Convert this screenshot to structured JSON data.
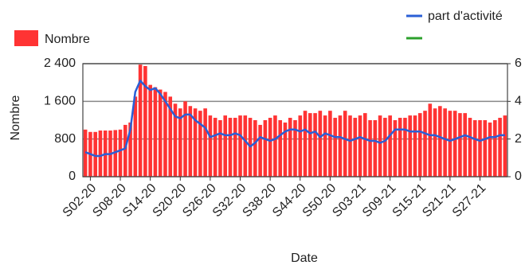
{
  "chart_data": {
    "type": "bar_line",
    "y_label": "Nombre",
    "x_label": "Date",
    "categories": [
      null,
      "S02-20",
      null,
      null,
      null,
      null,
      null,
      "S08-20",
      null,
      null,
      null,
      null,
      null,
      "S14-20",
      null,
      null,
      null,
      null,
      null,
      "S20-20",
      null,
      null,
      null,
      null,
      null,
      "S26-20",
      null,
      null,
      null,
      null,
      null,
      "S32-20",
      null,
      null,
      null,
      null,
      null,
      "S38-20",
      null,
      null,
      null,
      null,
      null,
      "S44-20",
      null,
      null,
      null,
      null,
      null,
      "S50-20",
      null,
      null,
      null,
      null,
      null,
      "S03-21",
      null,
      null,
      null,
      null,
      null,
      "S09-21",
      null,
      null,
      null,
      null,
      null,
      "S15-21",
      null,
      null,
      null,
      null,
      null,
      "S21-21",
      null,
      null,
      null,
      null,
      null,
      "S27-21",
      null,
      null,
      null,
      null,
      null
    ],
    "series": [
      {
        "name": "Nombre",
        "color": "#ff3333",
        "kind": "bar",
        "axis": "y",
        "values": [
          1000,
          950,
          950,
          980,
          980,
          980,
          990,
          1000,
          1100,
          1150,
          1700,
          2380,
          2350,
          1950,
          1900,
          1850,
          1800,
          1700,
          1550,
          1450,
          1600,
          1500,
          1450,
          1400,
          1450,
          1300,
          1250,
          1200,
          1300,
          1250,
          1250,
          1300,
          1300,
          1250,
          1200,
          1100,
          1200,
          1250,
          1300,
          1200,
          1150,
          1250,
          1200,
          1300,
          1400,
          1350,
          1350,
          1400,
          1300,
          1400,
          1250,
          1300,
          1400,
          1300,
          1250,
          1300,
          1350,
          1200,
          1200,
          1300,
          1250,
          1300,
          1200,
          1250,
          1250,
          1300,
          1300,
          1350,
          1400,
          1550,
          1450,
          1500,
          1450,
          1400,
          1400,
          1350,
          1350,
          1250,
          1200,
          1200,
          1200,
          1150,
          1200,
          1250,
          1300
        ]
      },
      {
        "name": "part d'activité",
        "color": "#2a5fd6",
        "kind": "line",
        "axis": "y2",
        "values": [
          1.3,
          1.2,
          1.1,
          1.1,
          1.2,
          1.2,
          1.3,
          1.4,
          1.5,
          2.5,
          4.5,
          5.1,
          4.8,
          4.6,
          4.7,
          4.4,
          4.0,
          3.6,
          3.2,
          3.1,
          3.3,
          3.3,
          3.0,
          2.8,
          2.6,
          2.1,
          2.2,
          2.3,
          2.2,
          2.2,
          2.3,
          2.2,
          1.9,
          1.6,
          1.8,
          2.1,
          2.0,
          1.9,
          2.0,
          2.2,
          2.4,
          2.5,
          2.5,
          2.4,
          2.5,
          2.3,
          2.4,
          2.1,
          2.3,
          2.2,
          2.1,
          2.1,
          2.0,
          1.9,
          2.0,
          2.1,
          2.0,
          1.9,
          1.9,
          1.8,
          1.9,
          2.2,
          2.5,
          2.5,
          2.5,
          2.4,
          2.4,
          2.4,
          2.3,
          2.2,
          2.2,
          2.1,
          2.0,
          1.9,
          2.0,
          2.1,
          2.2,
          2.1,
          2.0,
          1.9,
          2.0,
          2.1,
          2.1,
          2.2,
          2.2
        ]
      }
    ],
    "ylim": [
      0,
      2400
    ],
    "yticks": [
      0,
      800,
      {
        "value": 1600,
        "label": "1 600"
      },
      {
        "value": 2400,
        "label": "2 400"
      }
    ],
    "y2lim": [
      0,
      6
    ],
    "y2ticks": [
      0,
      2,
      4,
      6
    ],
    "grid": true
  }
}
